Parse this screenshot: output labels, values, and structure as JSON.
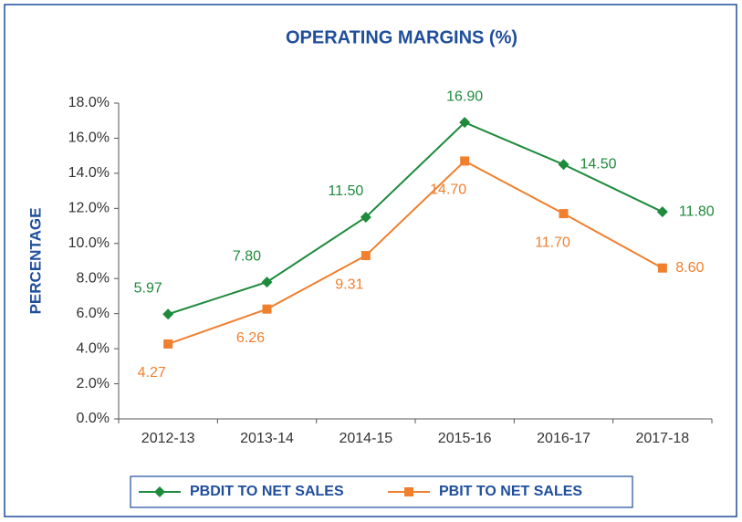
{
  "chart_data": {
    "type": "line",
    "title": "OPERATING MARGINS (%)",
    "y_label": "PERCENTAGE",
    "categories": [
      "2012-13",
      "2013-14",
      "2014-15",
      "2015-16",
      "2016-17",
      "2017-18"
    ],
    "series": [
      {
        "name": "PBDIT TO NET SALES",
        "color": "#1e8a3c",
        "marker": "diamond",
        "values": [
          5.97,
          7.8,
          11.5,
          16.9,
          14.5,
          11.8
        ],
        "value_labels": [
          "5.97",
          "7.80",
          "11.50",
          "16.90",
          "14.50",
          "11.80"
        ]
      },
      {
        "name": "PBIT TO NET SALES",
        "color": "#f07f2e",
        "marker": "square",
        "values": [
          4.27,
          6.26,
          9.31,
          14.7,
          11.7,
          8.6
        ],
        "value_labels": [
          "4.27",
          "6.26",
          "9.31",
          "14.70",
          "11.70",
          "8.60"
        ]
      }
    ],
    "ylim": [
      0,
      18
    ],
    "yticks": [
      {
        "value": 0,
        "label": "0.0%"
      },
      {
        "value": 2,
        "label": "2.0%"
      },
      {
        "value": 4,
        "label": "4.0%"
      },
      {
        "value": 6,
        "label": "6.0%"
      },
      {
        "value": 8,
        "label": "8.0%"
      },
      {
        "value": 10,
        "label": "10.0%"
      },
      {
        "value": 12,
        "label": "12.0%"
      },
      {
        "value": 14,
        "label": "14.0%"
      },
      {
        "value": 16,
        "label": "16.0%"
      },
      {
        "value": 18,
        "label": "18.0%"
      }
    ],
    "legend": "bottom"
  }
}
